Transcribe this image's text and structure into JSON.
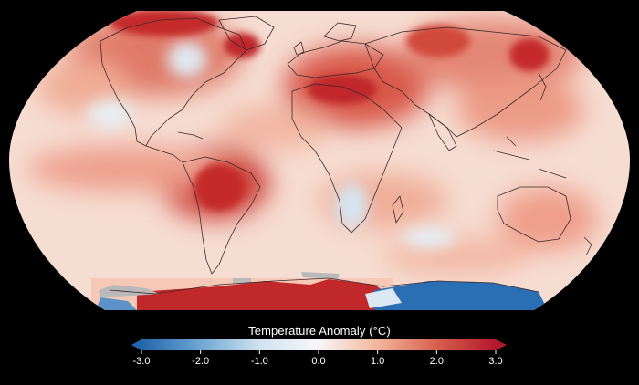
{
  "legend": {
    "title": "Temperature Anomaly (°C)",
    "ticks": [
      {
        "value": -3.0,
        "label": "-3.0"
      },
      {
        "value": -2.0,
        "label": "-2.0"
      },
      {
        "value": -1.0,
        "label": "-1.0"
      },
      {
        "value": 0.0,
        "label": "0.0"
      },
      {
        "value": 1.0,
        "label": "1.0"
      },
      {
        "value": 2.0,
        "label": "2.0"
      },
      {
        "value": 3.0,
        "label": "3.0"
      }
    ],
    "range": [
      -3.0,
      3.0
    ],
    "colors": [
      "#2166ac",
      "#6fa6d3",
      "#cfe3f0",
      "#f7f7f7",
      "#f3b59c",
      "#d6604d",
      "#b2182b"
    ],
    "cold_arrow_color": "#2166ac",
    "warm_arrow_color": "#b2182b"
  },
  "map": {
    "background": "#000000",
    "base_color": "#f6ddd2",
    "coastline_color": "#3a2a2a",
    "projection": "Robinson-like (world)"
  }
}
